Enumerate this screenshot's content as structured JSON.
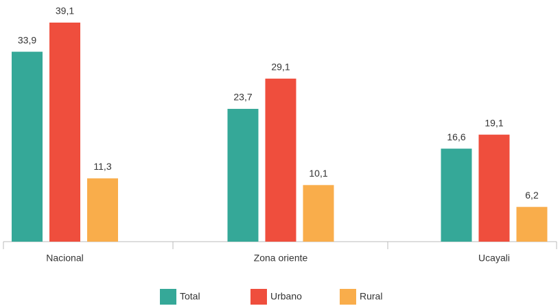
{
  "chart_data": {
    "type": "bar",
    "categories": [
      "Nacional",
      "Zona oriente",
      "Ucayali"
    ],
    "series": [
      {
        "name": "Total",
        "color": "#35a898",
        "values": [
          33.9,
          23.7,
          16.6
        ],
        "value_labels": [
          "33,9",
          "23,7",
          "16,6"
        ]
      },
      {
        "name": "Urbano",
        "color": "#ef4e3d",
        "values": [
          39.1,
          29.1,
          19.1
        ],
        "value_labels": [
          "39,1",
          "29,1",
          "19,1"
        ]
      },
      {
        "name": "Rural",
        "color": "#f9ad4b",
        "values": [
          11.3,
          10.1,
          6.2
        ],
        "value_labels": [
          "11,3",
          "10,1",
          "6,2"
        ]
      }
    ]
  }
}
